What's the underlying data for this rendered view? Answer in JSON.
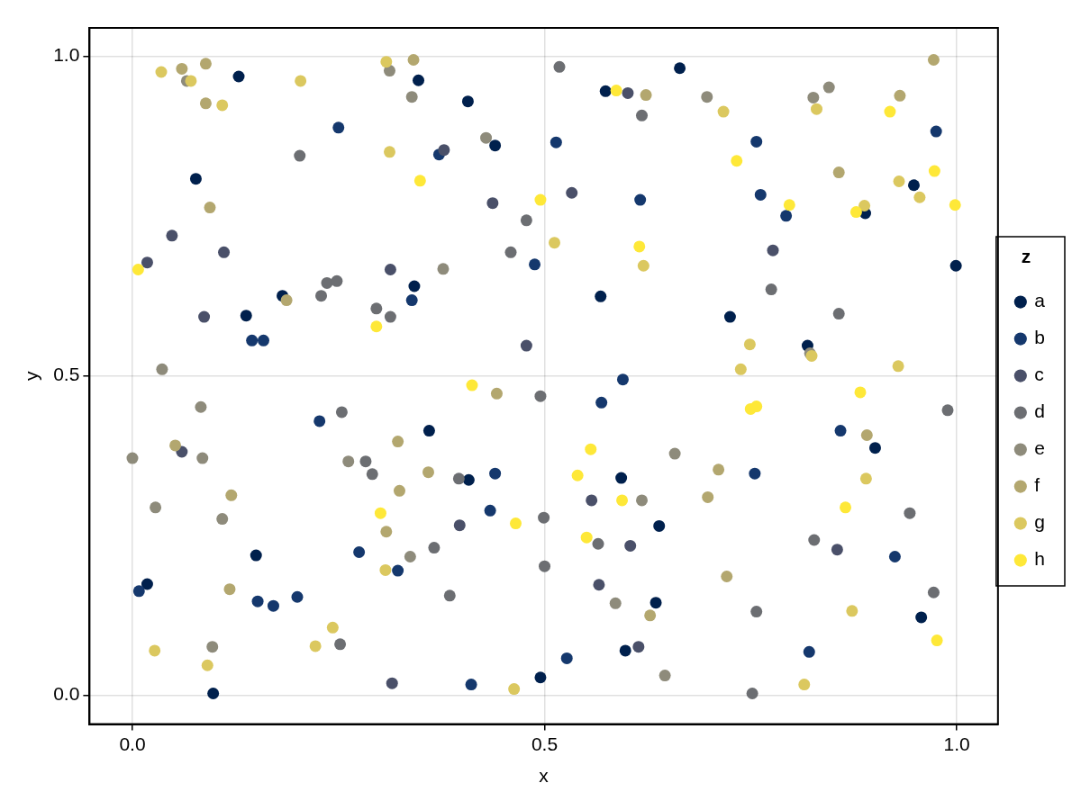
{
  "chart_data": {
    "type": "scatter",
    "xlabel": "x",
    "ylabel": "y",
    "legend_title": "z",
    "legend": "right",
    "grid": true,
    "marker": "circle",
    "xlim": [
      -0.052,
      1.05
    ],
    "ylim": [
      -0.045,
      1.044
    ],
    "xticks": [
      {
        "value": 0,
        "label": "0.0"
      },
      {
        "value": 0.5,
        "label": "0.5"
      },
      {
        "value": 1,
        "label": "1.0"
      }
    ],
    "yticks": [
      {
        "value": 0,
        "label": "0.0"
      },
      {
        "value": 0.5,
        "label": "0.5"
      },
      {
        "value": 1,
        "label": "1.0"
      }
    ],
    "series": [
      {
        "name": "a",
        "color": "#00204d",
        "x": [
          0.129,
          0.077,
          0.182,
          0.138,
          0.347,
          0.407,
          0.574,
          0.664,
          0.44,
          0.342,
          0.568,
          0.948,
          0.889,
          0.999,
          0.725,
          0.819,
          0.15,
          0.018,
          0.098,
          0.36,
          0.408,
          0.593,
          0.639,
          0.635,
          0.598,
          0.495,
          0.901,
          0.957
        ],
        "values": [
          0.968,
          0.808,
          0.625,
          0.594,
          0.962,
          0.929,
          0.945,
          0.981,
          0.86,
          0.64,
          0.624,
          0.798,
          0.754,
          0.672,
          0.592,
          0.547,
          0.219,
          0.174,
          0.003,
          0.414,
          0.337,
          0.34,
          0.265,
          0.145,
          0.07,
          0.028,
          0.387,
          0.122
        ]
      },
      {
        "name": "b",
        "color": "#15386d",
        "x": [
          0.25,
          0.372,
          0.514,
          0.616,
          0.488,
          0.339,
          0.145,
          0.159,
          0.975,
          0.757,
          0.762,
          0.793,
          0.227,
          0.275,
          0.008,
          0.152,
          0.171,
          0.2,
          0.595,
          0.569,
          0.44,
          0.434,
          0.322,
          0.527,
          0.411,
          0.859,
          0.755,
          0.925,
          0.821
        ],
        "values": [
          0.888,
          0.846,
          0.865,
          0.775,
          0.674,
          0.618,
          0.555,
          0.555,
          0.882,
          0.866,
          0.783,
          0.75,
          0.429,
          0.224,
          0.163,
          0.147,
          0.14,
          0.154,
          0.494,
          0.458,
          0.347,
          0.289,
          0.195,
          0.058,
          0.017,
          0.414,
          0.347,
          0.217,
          0.068
        ]
      },
      {
        "name": "c",
        "color": "#4a5069",
        "x": [
          0.048,
          0.111,
          0.018,
          0.087,
          0.313,
          0.378,
          0.437,
          0.533,
          0.601,
          0.478,
          0.777,
          0.06,
          0.315,
          0.397,
          0.557,
          0.604,
          0.566,
          0.614,
          0.855
        ],
        "values": [
          0.719,
          0.693,
          0.677,
          0.592,
          0.666,
          0.853,
          0.77,
          0.786,
          0.942,
          0.547,
          0.696,
          0.381,
          0.019,
          0.266,
          0.305,
          0.234,
          0.173,
          0.076,
          0.228
        ]
      },
      {
        "name": "d",
        "color": "#6c6e72",
        "x": [
          0.203,
          0.236,
          0.248,
          0.229,
          0.296,
          0.313,
          0.518,
          0.618,
          0.478,
          0.459,
          0.775,
          0.857,
          0.254,
          0.283,
          0.291,
          0.252,
          0.495,
          0.396,
          0.499,
          0.565,
          0.366,
          0.5,
          0.385,
          0.989,
          0.943,
          0.827,
          0.972,
          0.757,
          0.752
        ],
        "values": [
          0.844,
          0.645,
          0.648,
          0.625,
          0.605,
          0.592,
          0.983,
          0.907,
          0.743,
          0.693,
          0.635,
          0.597,
          0.443,
          0.366,
          0.346,
          0.08,
          0.468,
          0.339,
          0.278,
          0.237,
          0.231,
          0.202,
          0.156,
          0.446,
          0.285,
          0.243,
          0.161,
          0.131,
          0.003
        ]
      },
      {
        "name": "e",
        "color": "#8e8b7b",
        "x": [
          0.066,
          0.312,
          0.036,
          0.339,
          0.429,
          0.377,
          0.697,
          0.845,
          0.826,
          0.822,
          0.083,
          0.0,
          0.085,
          0.262,
          0.028,
          0.109,
          0.097,
          0.337,
          0.658,
          0.618,
          0.586,
          0.646
        ],
        "values": [
          0.961,
          0.977,
          0.51,
          0.936,
          0.872,
          0.667,
          0.936,
          0.951,
          0.935,
          0.535,
          0.451,
          0.371,
          0.371,
          0.366,
          0.294,
          0.276,
          0.076,
          0.217,
          0.378,
          0.305,
          0.144,
          0.031
        ]
      },
      {
        "name": "f",
        "color": "#b3a76f",
        "x": [
          0.06,
          0.089,
          0.089,
          0.094,
          0.187,
          0.341,
          0.623,
          0.972,
          0.931,
          0.857,
          0.052,
          0.12,
          0.308,
          0.118,
          0.442,
          0.322,
          0.359,
          0.324,
          0.628,
          0.891,
          0.711,
          0.698,
          0.721
        ],
        "values": [
          0.98,
          0.988,
          0.926,
          0.763,
          0.618,
          0.994,
          0.939,
          0.994,
          0.938,
          0.818,
          0.391,
          0.313,
          0.256,
          0.166,
          0.472,
          0.397,
          0.349,
          0.32,
          0.125,
          0.407,
          0.353,
          0.31,
          0.186
        ]
      },
      {
        "name": "g",
        "color": "#dbc85f",
        "x": [
          0.035,
          0.071,
          0.204,
          0.109,
          0.308,
          0.312,
          0.512,
          0.62,
          0.717,
          0.83,
          0.93,
          0.955,
          0.888,
          0.749,
          0.824,
          0.738,
          0.929,
          0.307,
          0.243,
          0.222,
          0.027,
          0.091,
          0.463,
          0.89,
          0.873,
          0.815
        ],
        "values": [
          0.975,
          0.961,
          0.961,
          0.923,
          0.991,
          0.85,
          0.708,
          0.672,
          0.913,
          0.917,
          0.804,
          0.779,
          0.766,
          0.549,
          0.531,
          0.51,
          0.515,
          0.196,
          0.106,
          0.077,
          0.07,
          0.047,
          0.01,
          0.339,
          0.132,
          0.017
        ]
      },
      {
        "name": "h",
        "color": "#fee838",
        "x": [
          0.007,
          0.296,
          0.349,
          0.495,
          0.587,
          0.615,
          0.919,
          0.733,
          0.973,
          0.797,
          0.878,
          0.998,
          0.301,
          0.412,
          0.465,
          0.556,
          0.54,
          0.594,
          0.551,
          0.883,
          0.75,
          0.757,
          0.865,
          0.976
        ],
        "values": [
          0.666,
          0.577,
          0.805,
          0.775,
          0.946,
          0.702,
          0.913,
          0.836,
          0.82,
          0.767,
          0.756,
          0.767,
          0.285,
          0.485,
          0.269,
          0.385,
          0.344,
          0.305,
          0.247,
          0.474,
          0.448,
          0.452,
          0.294,
          0.086
        ]
      }
    ]
  }
}
